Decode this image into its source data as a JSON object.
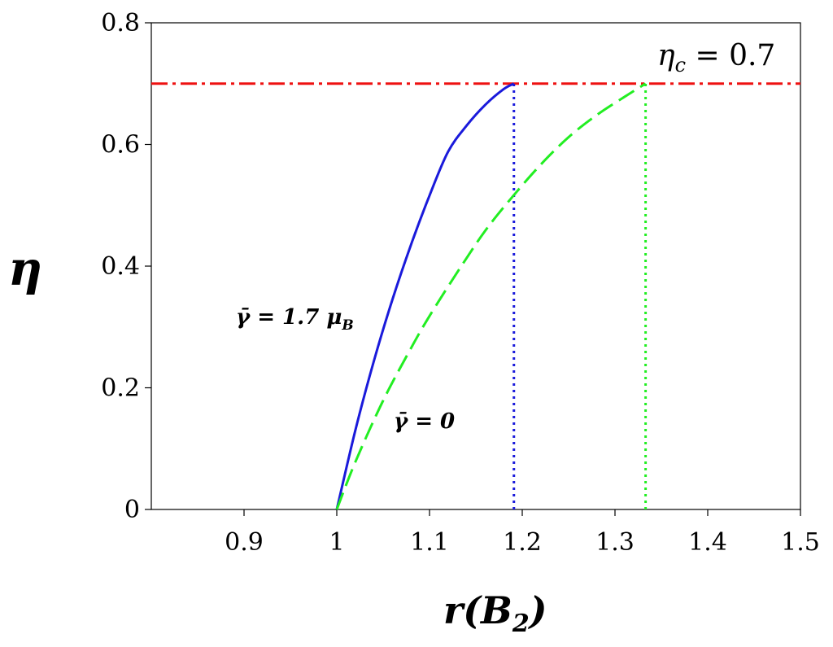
{
  "chart_data": {
    "type": "line",
    "xlabel": "r(B2)",
    "xlabel_parts": {
      "main": "r(B",
      "sub": "2",
      "close": ")"
    },
    "ylabel": "η",
    "xlim": [
      0.8,
      1.5
    ],
    "ylim": [
      0,
      0.8
    ],
    "xticks": [
      0.9,
      1,
      1.1,
      1.2,
      1.3,
      1.4,
      1.5
    ],
    "xtick_labels": [
      "0.9",
      "1",
      "1.1",
      "1.2",
      "1.3",
      "1.4",
      "1.5"
    ],
    "yticks": [
      0,
      0.2,
      0.4,
      0.6,
      0.8
    ],
    "ytick_labels": [
      "0",
      "0.2",
      "0.4",
      "0.6",
      "0.8"
    ],
    "grid": false,
    "series": [
      {
        "name": "γ̄ = 1.7 μB",
        "color": "#1a1adb",
        "style": "solid",
        "x": [
          1.0,
          1.02,
          1.04,
          1.06,
          1.08,
          1.1,
          1.12,
          1.14,
          1.16,
          1.18,
          1.191
        ],
        "y": [
          0.0,
          0.13,
          0.244,
          0.345,
          0.435,
          0.516,
          0.588,
          0.631,
          0.665,
          0.691,
          0.7
        ]
      },
      {
        "name": "γ̄ = 0",
        "color": "#22ee22",
        "style": "dashed",
        "x": [
          1.0,
          1.02,
          1.05,
          1.08,
          1.1,
          1.13,
          1.16,
          1.19,
          1.22,
          1.25,
          1.28,
          1.31,
          1.333
        ],
        "y": [
          0.0,
          0.078,
          0.179,
          0.265,
          0.318,
          0.39,
          0.458,
          0.515,
          0.567,
          0.612,
          0.648,
          0.678,
          0.7
        ]
      }
    ],
    "reference_lines": [
      {
        "orientation": "horizontal",
        "y": 0.7,
        "color": "#ee1111",
        "style": "dash-dot"
      },
      {
        "orientation": "vertical",
        "x": 1.191,
        "y_from": 0,
        "y_to": 0.7,
        "color": "#1a1adb",
        "style": "dotted"
      },
      {
        "orientation": "vertical",
        "x": 1.333,
        "y_from": 0,
        "y_to": 0.7,
        "color": "#22ee22",
        "style": "dotted"
      }
    ],
    "annotations": {
      "eta_c": {
        "main": "η",
        "sub": "c",
        "rest": " = 0.7"
      },
      "gamma_b": {
        "main": "γ̄ = 1.7 μ",
        "sub": "B"
      },
      "gamma_0": {
        "main": "γ̄ = 0"
      }
    }
  }
}
